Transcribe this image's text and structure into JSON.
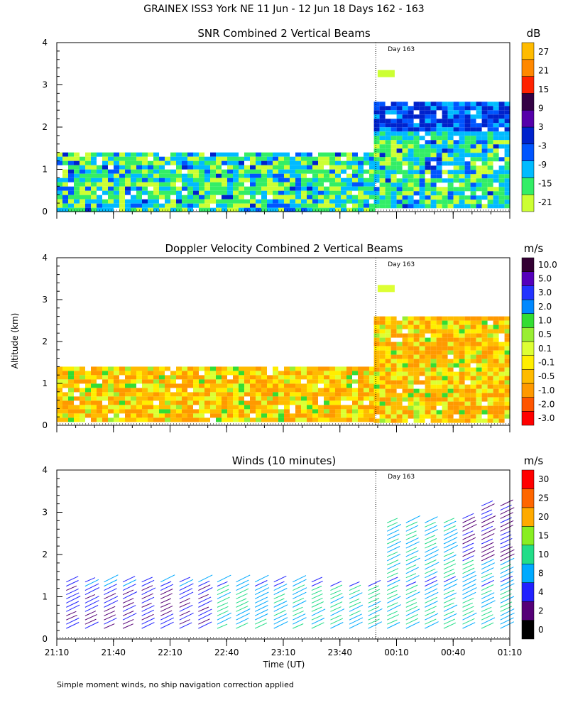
{
  "title": "GRAINEX ISS3 York NE  11 Jun - 12 Jun 18 Days 162 - 163",
  "footnote": "Simple moment winds, no ship navigation correction applied",
  "y_axis_label": "Altitude (km)",
  "x_axis_label": "Time (UT)",
  "day_marker_label": "Day 163",
  "colors": {
    "snr": [
      "#ccff33",
      "#33ee66",
      "#00bbff",
      "#0055ff",
      "#0022cc",
      "#5500aa",
      "#330044",
      "#ff2200",
      "#ff8800",
      "#ffbb00"
    ],
    "velocity": [
      "#ff0000",
      "#ff5500",
      "#ff9900",
      "#ffbb00",
      "#ffee00",
      "#ddff33",
      "#99ee33",
      "#33dd33",
      "#0088ff",
      "#2233ff",
      "#5500bb",
      "#330033"
    ],
    "winds": [
      "#000000",
      "#550077",
      "#2222ff",
      "#00aaff",
      "#22dd88",
      "#88ee22",
      "#ffaa00",
      "#ff6600",
      "#ff0000"
    ]
  },
  "chart_data": [
    {
      "type": "heatmap",
      "title": "SNR Combined 2 Vertical Beams",
      "units": "dB",
      "ylabel": "Altitude (km)",
      "ylim": [
        0,
        4
      ],
      "yticks": [
        "0",
        "1",
        "2",
        "3",
        "4"
      ],
      "colorbar_ticks": [
        "27",
        "21",
        "15",
        "9",
        "3",
        "-3",
        "-9",
        "-15",
        "-21"
      ],
      "coverage": [
        {
          "from": "21:10",
          "to": "23:58",
          "top_km": 1.4
        },
        {
          "from": "23:58",
          "to": "01:10",
          "top_km": 2.6
        }
      ]
    },
    {
      "type": "heatmap",
      "title": "Doppler Velocity Combined 2 Vertical Beams",
      "units": "m/s",
      "ylabel": "Altitude (km)",
      "ylim": [
        0,
        4
      ],
      "yticks": [
        "0",
        "1",
        "2",
        "3",
        "4"
      ],
      "colorbar_ticks": [
        "10.0",
        "5.0",
        "3.0",
        "2.0",
        "1.0",
        "0.5",
        "0.1",
        "-0.1",
        "-0.5",
        "-1.0",
        "-2.0",
        "-3.0"
      ],
      "coverage": [
        {
          "from": "21:10",
          "to": "23:58",
          "top_km": 1.4
        },
        {
          "from": "23:58",
          "to": "01:10",
          "top_km": 2.6
        }
      ]
    },
    {
      "type": "scatter",
      "title": "Winds (10 minutes)",
      "units": "m/s",
      "xlabel": "Time (UT)",
      "ylabel": "Altitude (km)",
      "ylim": [
        0,
        4
      ],
      "yticks": [
        "0",
        "1",
        "2",
        "3",
        "4"
      ],
      "xticks": [
        "21:10",
        "21:40",
        "22:10",
        "22:40",
        "23:10",
        "23:40",
        "00:10",
        "00:40",
        "01:10"
      ],
      "colorbar_ticks": [
        "30",
        "25",
        "20",
        "15",
        "10",
        "8",
        "4",
        "2",
        "0"
      ],
      "profile_times": [
        "21:15",
        "21:25",
        "21:35",
        "21:45",
        "21:55",
        "22:05",
        "22:15",
        "22:25",
        "22:35",
        "22:45",
        "22:55",
        "23:05",
        "23:15",
        "23:25",
        "23:35",
        "23:45",
        "23:55",
        "00:05",
        "00:15",
        "00:25",
        "00:35",
        "00:45",
        "00:55",
        "01:05"
      ],
      "profile_top_km": [
        1.4,
        1.4,
        1.4,
        1.4,
        1.4,
        1.4,
        1.4,
        1.4,
        1.4,
        1.4,
        1.4,
        1.4,
        1.4,
        1.4,
        1.3,
        1.3,
        1.3,
        2.8,
        2.8,
        2.8,
        2.8,
        2.9,
        3.2,
        3.2
      ]
    }
  ]
}
